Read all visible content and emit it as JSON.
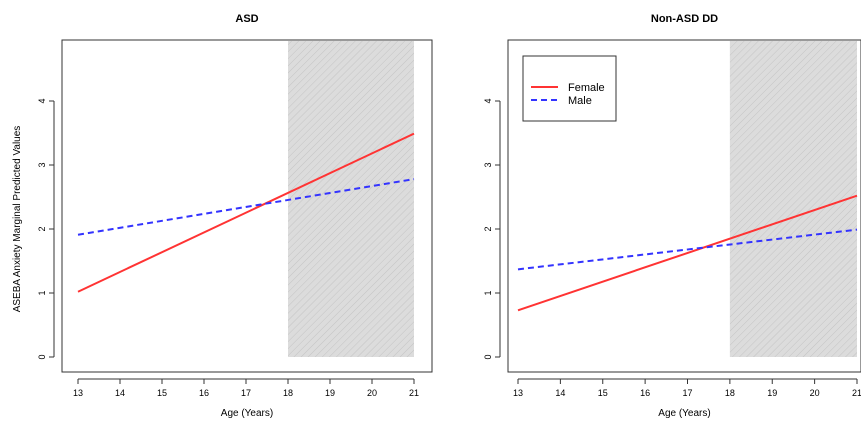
{
  "figure": {
    "ylabel": "ASEBA Anxiety Marginal Predicted Values"
  },
  "chart_data": [
    {
      "type": "line",
      "title": "ASD",
      "xlabel": "Age (Years)",
      "ylabel": "ASEBA Anxiety Marginal Predicted Values",
      "xlim": [
        13,
        21
      ],
      "ylim": [
        0,
        4.8
      ],
      "xticks": [
        "13",
        "14",
        "15",
        "16",
        "17",
        "18",
        "19",
        "20",
        "21"
      ],
      "yticks": [
        "0",
        "1",
        "2",
        "3",
        "4"
      ],
      "shaded_region": {
        "x": [
          18,
          21
        ],
        "y": [
          0,
          4.8
        ],
        "fill": "#d9d9d9"
      },
      "legend": false,
      "series": [
        {
          "name": "Female",
          "color": "#ff3333",
          "style": "solid",
          "x": [
            13,
            21
          ],
          "y": [
            1.02,
            3.49
          ]
        },
        {
          "name": "Male",
          "color": "#3333ff",
          "style": "dashed",
          "x": [
            13,
            21
          ],
          "y": [
            1.91,
            2.78
          ]
        }
      ]
    },
    {
      "type": "line",
      "title": "Non-ASD DD",
      "xlabel": "Age (Years)",
      "ylabel": "",
      "xlim": [
        13,
        21
      ],
      "ylim": [
        0,
        4.8
      ],
      "xticks": [
        "13",
        "14",
        "15",
        "16",
        "17",
        "18",
        "19",
        "20",
        "21"
      ],
      "yticks": [
        "0",
        "1",
        "2",
        "3",
        "4"
      ],
      "shaded_region": {
        "x": [
          18,
          21
        ],
        "y": [
          0,
          4.8
        ],
        "fill": "#d9d9d9"
      },
      "legend": true,
      "legend_position": "top-left",
      "series": [
        {
          "name": "Female",
          "color": "#ff3333",
          "style": "solid",
          "x": [
            13,
            21
          ],
          "y": [
            0.73,
            2.52
          ]
        },
        {
          "name": "Male",
          "color": "#3333ff",
          "style": "dashed",
          "x": [
            13,
            21
          ],
          "y": [
            1.37,
            1.99
          ]
        }
      ]
    }
  ]
}
